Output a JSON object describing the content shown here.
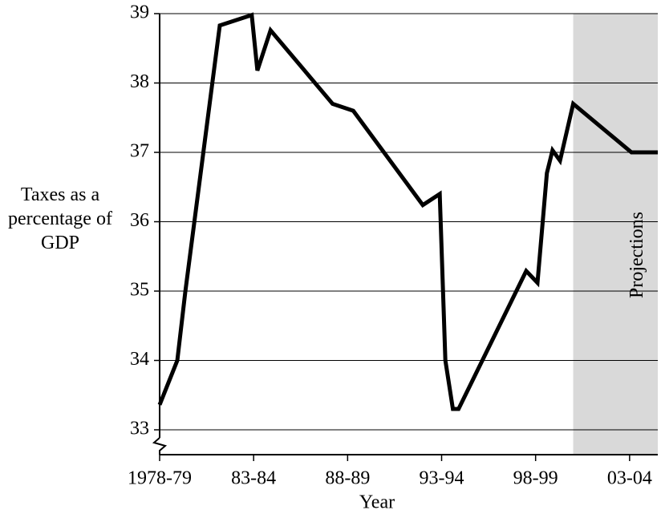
{
  "chart_data": {
    "type": "line",
    "y_label": "Taxes as a percentage of GDP",
    "x_label": "Year",
    "x": [
      1978,
      1978.94,
      1979.37,
      1981.2,
      1982.9,
      1983.2,
      1983.9,
      1987.2,
      1988.3,
      1992.0,
      1992.9,
      1993.2,
      1993.6,
      1993.9,
      1997.5,
      1998.1,
      1998.6,
      1998.9,
      1999.3,
      2000.0,
      2003.1,
      2004.5
    ],
    "series": [
      {
        "color": "#000000",
        "values": [
          33.36,
          34.0,
          35.0,
          38.83,
          38.98,
          38.18,
          38.76,
          37.7,
          37.6,
          36.24,
          36.4,
          34.0,
          33.3,
          33.3,
          35.29,
          35.12,
          36.7,
          37.03,
          36.88,
          37.7,
          37.0,
          37.0
        ]
      }
    ],
    "xlim": [
      1978,
      2004.5
    ],
    "xticks": [
      {
        "value": 1978,
        "label": "1978-79"
      },
      {
        "value": 1983,
        "label": "83-84"
      },
      {
        "value": 1988,
        "label": "88-89"
      },
      {
        "value": 1993,
        "label": "93-94"
      },
      {
        "value": 1998,
        "label": "98-99"
      },
      {
        "value": 2003,
        "label": "03-04"
      }
    ],
    "ylim": [
      33,
      39
    ],
    "yticks": [
      33,
      34,
      35,
      36,
      37,
      38,
      39
    ],
    "grid": true,
    "shaded_region": {
      "x": [
        2000.0,
        2004.5
      ],
      "label": "Projections",
      "color": "#d9d9d9"
    }
  }
}
